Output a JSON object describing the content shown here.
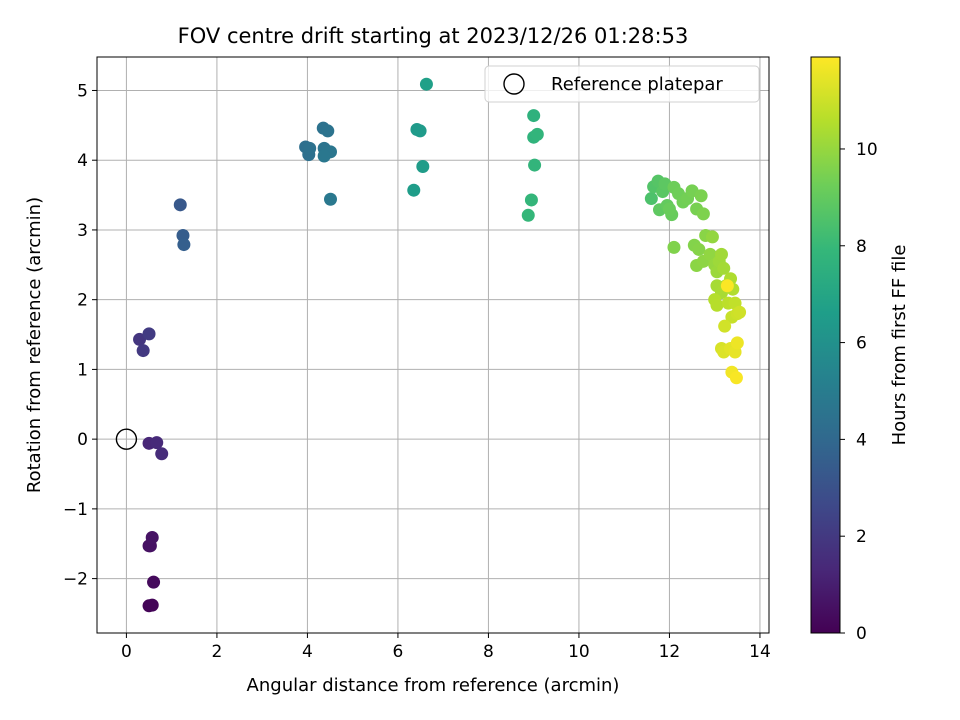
{
  "chart_data": {
    "type": "scatter",
    "title": "FOV centre drift starting at 2023/12/26 01:28:53",
    "xlabel": "Angular distance from reference (arcmin)",
    "ylabel": "Rotation from reference (arcmin)",
    "xlim": [
      -0.65,
      14.2
    ],
    "ylim": [
      -2.78,
      5.48
    ],
    "xticks": [
      0,
      2,
      4,
      6,
      8,
      10,
      12,
      14
    ],
    "yticks": [
      -2,
      -1,
      0,
      1,
      2,
      3,
      4,
      5
    ],
    "grid": true,
    "legend": {
      "location": "upper right",
      "entries": [
        "Reference platepar"
      ]
    },
    "reference_point": {
      "x": 0,
      "y": 0,
      "label": "Reference platepar"
    },
    "colorbar": {
      "label": "Hours from first FF file",
      "colormap": "viridis",
      "range": [
        0,
        11.9
      ],
      "ticks": [
        0,
        2,
        4,
        6,
        8,
        10
      ]
    },
    "points": [
      {
        "x": 0.5,
        "y": -2.39,
        "t": 0.1
      },
      {
        "x": 0.57,
        "y": -2.38,
        "t": 0.15
      },
      {
        "x": 0.6,
        "y": -2.05,
        "t": 0.3
      },
      {
        "x": 0.5,
        "y": -1.53,
        "t": 0.5
      },
      {
        "x": 0.57,
        "y": -1.41,
        "t": 0.6
      },
      {
        "x": 0.53,
        "y": -1.53,
        "t": 0.55
      },
      {
        "x": 0.5,
        "y": -0.06,
        "t": 1.3
      },
      {
        "x": 0.67,
        "y": -0.05,
        "t": 1.4
      },
      {
        "x": 0.78,
        "y": -0.21,
        "t": 1.5
      },
      {
        "x": 0.29,
        "y": 1.43,
        "t": 1.9
      },
      {
        "x": 0.37,
        "y": 1.27,
        "t": 2.0
      },
      {
        "x": 0.5,
        "y": 1.51,
        "t": 2.1
      },
      {
        "x": 1.19,
        "y": 3.36,
        "t": 3.3
      },
      {
        "x": 1.25,
        "y": 2.92,
        "t": 3.5
      },
      {
        "x": 1.27,
        "y": 2.79,
        "t": 3.6
      },
      {
        "x": 3.96,
        "y": 4.19,
        "t": 4.3
      },
      {
        "x": 4.03,
        "y": 4.08,
        "t": 4.35
      },
      {
        "x": 4.05,
        "y": 4.17,
        "t": 4.4
      },
      {
        "x": 4.35,
        "y": 4.46,
        "t": 4.5
      },
      {
        "x": 4.45,
        "y": 4.42,
        "t": 4.55
      },
      {
        "x": 4.37,
        "y": 4.17,
        "t": 4.6
      },
      {
        "x": 4.41,
        "y": 4.1,
        "t": 4.65
      },
      {
        "x": 4.51,
        "y": 4.12,
        "t": 4.7
      },
      {
        "x": 4.37,
        "y": 4.06,
        "t": 4.75
      },
      {
        "x": 4.51,
        "y": 3.44,
        "t": 4.8
      },
      {
        "x": 6.63,
        "y": 5.09,
        "t": 6.7
      },
      {
        "x": 6.42,
        "y": 4.44,
        "t": 6.4
      },
      {
        "x": 6.49,
        "y": 4.42,
        "t": 6.45
      },
      {
        "x": 6.55,
        "y": 3.91,
        "t": 6.5
      },
      {
        "x": 6.35,
        "y": 3.57,
        "t": 6.55
      },
      {
        "x": 9.0,
        "y": 4.64,
        "t": 7.6
      },
      {
        "x": 9.0,
        "y": 4.33,
        "t": 7.7
      },
      {
        "x": 9.08,
        "y": 4.37,
        "t": 7.75
      },
      {
        "x": 9.02,
        "y": 3.93,
        "t": 7.8
      },
      {
        "x": 8.95,
        "y": 3.43,
        "t": 7.85
      },
      {
        "x": 8.88,
        "y": 3.21,
        "t": 7.9
      },
      {
        "x": 11.6,
        "y": 3.45,
        "t": 8.5
      },
      {
        "x": 11.65,
        "y": 3.62,
        "t": 8.6
      },
      {
        "x": 11.75,
        "y": 3.7,
        "t": 8.7
      },
      {
        "x": 11.85,
        "y": 3.55,
        "t": 8.8
      },
      {
        "x": 11.9,
        "y": 3.66,
        "t": 8.85
      },
      {
        "x": 11.78,
        "y": 3.29,
        "t": 8.9
      },
      {
        "x": 11.95,
        "y": 3.35,
        "t": 9.0
      },
      {
        "x": 12.05,
        "y": 3.22,
        "t": 9.1
      },
      {
        "x": 12.0,
        "y": 3.3,
        "t": 9.15
      },
      {
        "x": 12.1,
        "y": 3.61,
        "t": 9.2
      },
      {
        "x": 12.2,
        "y": 3.52,
        "t": 9.25
      },
      {
        "x": 12.3,
        "y": 3.4,
        "t": 9.3
      },
      {
        "x": 12.4,
        "y": 3.45,
        "t": 9.35
      },
      {
        "x": 12.5,
        "y": 3.56,
        "t": 9.4
      },
      {
        "x": 12.6,
        "y": 3.3,
        "t": 9.45
      },
      {
        "x": 12.7,
        "y": 3.49,
        "t": 9.5
      },
      {
        "x": 12.75,
        "y": 3.23,
        "t": 9.55
      },
      {
        "x": 12.1,
        "y": 2.75,
        "t": 9.6
      },
      {
        "x": 12.55,
        "y": 2.78,
        "t": 9.65
      },
      {
        "x": 12.65,
        "y": 2.72,
        "t": 9.7
      },
      {
        "x": 12.8,
        "y": 2.92,
        "t": 9.75
      },
      {
        "x": 12.6,
        "y": 2.49,
        "t": 9.8
      },
      {
        "x": 12.75,
        "y": 2.55,
        "t": 9.85
      },
      {
        "x": 12.9,
        "y": 2.65,
        "t": 9.9
      },
      {
        "x": 12.95,
        "y": 2.9,
        "t": 9.95
      },
      {
        "x": 13.0,
        "y": 2.5,
        "t": 10.0
      },
      {
        "x": 13.05,
        "y": 2.4,
        "t": 10.1
      },
      {
        "x": 13.1,
        "y": 2.55,
        "t": 10.15
      },
      {
        "x": 13.15,
        "y": 2.65,
        "t": 10.2
      },
      {
        "x": 13.2,
        "y": 2.45,
        "t": 10.25
      },
      {
        "x": 13.05,
        "y": 2.2,
        "t": 10.3
      },
      {
        "x": 13.15,
        "y": 2.1,
        "t": 10.35
      },
      {
        "x": 13.25,
        "y": 2.2,
        "t": 10.4
      },
      {
        "x": 13.35,
        "y": 2.3,
        "t": 10.45
      },
      {
        "x": 13.4,
        "y": 2.15,
        "t": 10.5
      },
      {
        "x": 13.0,
        "y": 2.0,
        "t": 10.55
      },
      {
        "x": 13.05,
        "y": 1.92,
        "t": 10.6
      },
      {
        "x": 13.3,
        "y": 1.95,
        "t": 10.7
      },
      {
        "x": 13.45,
        "y": 1.95,
        "t": 10.8
      },
      {
        "x": 13.38,
        "y": 1.75,
        "t": 10.9
      },
      {
        "x": 13.5,
        "y": 1.8,
        "t": 11.0
      },
      {
        "x": 13.55,
        "y": 1.82,
        "t": 11.05
      },
      {
        "x": 13.22,
        "y": 1.62,
        "t": 11.1
      },
      {
        "x": 13.15,
        "y": 1.3,
        "t": 11.2
      },
      {
        "x": 13.2,
        "y": 1.25,
        "t": 11.3
      },
      {
        "x": 13.35,
        "y": 1.3,
        "t": 11.4
      },
      {
        "x": 13.45,
        "y": 1.25,
        "t": 11.5
      },
      {
        "x": 13.5,
        "y": 1.38,
        "t": 11.6
      },
      {
        "x": 13.38,
        "y": 0.96,
        "t": 11.7
      },
      {
        "x": 13.48,
        "y": 0.88,
        "t": 11.8
      },
      {
        "x": 13.28,
        "y": 2.2,
        "t": 11.85
      }
    ]
  }
}
